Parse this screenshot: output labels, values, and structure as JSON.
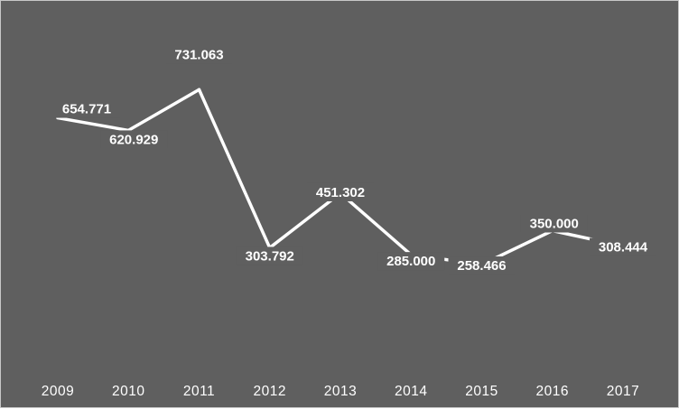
{
  "chart_data": {
    "type": "line",
    "categories": [
      "2009",
      "2010",
      "2011",
      "2012",
      "2013",
      "2014",
      "2015",
      "2016",
      "2017"
    ],
    "values": [
      654.771,
      620.929,
      731.063,
      303.792,
      451.302,
      285.0,
      258.466,
      350.0,
      308.444
    ],
    "value_labels": [
      "654.771",
      "620.929",
      "731.063",
      "303.792",
      "451.302",
      "285.000",
      "258.466",
      "350.000",
      "308.444"
    ],
    "title": "",
    "xlabel": "",
    "ylabel": "",
    "grid": false,
    "legend": "none",
    "drop_lines": true,
    "colors": {
      "background": "#5f5f5f",
      "line": "#ffffff",
      "text": "#ffffff",
      "drop_line": "#ffffff"
    }
  }
}
